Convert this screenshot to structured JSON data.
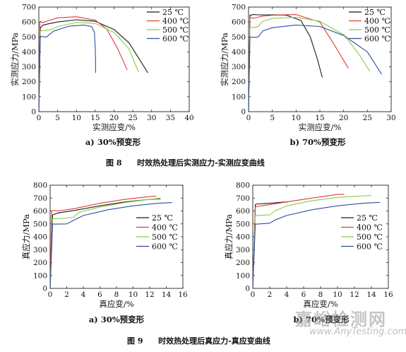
{
  "figures": [
    {
      "label": "图 8",
      "title": "时效热处理后实测应力-实测应变曲线"
    },
    {
      "label": "图 9",
      "title": "时效热处理后真应力-真应变曲线"
    }
  ],
  "watermark": {
    "cn": "嘉峪检测网",
    "en": "www.AnyTesting.com"
  },
  "colors": {
    "c25": "#1a1a1a",
    "c400": "#e03a3a",
    "c500": "#8acc48",
    "c600": "#2f4f9a"
  },
  "chart_data": [
    {
      "type": "line",
      "caption": "a) 30%预变形",
      "xlabel": "实测应变/%",
      "ylabel": "实测应力/MPa",
      "xlim": [
        0,
        40
      ],
      "ylim": [
        0,
        700
      ],
      "xticks": [
        0,
        5,
        10,
        15,
        20,
        25,
        30,
        35,
        40
      ],
      "yticks": [
        0,
        100,
        200,
        300,
        400,
        500,
        600,
        700
      ],
      "legend_position": "top-right",
      "series": [
        {
          "name": "25 ℃",
          "color_key": "c25",
          "x": [
            0,
            0.4,
            1,
            2,
            5,
            10,
            15,
            20,
            24,
            27,
            29
          ],
          "y": [
            0,
            560,
            578,
            585,
            600,
            615,
            605,
            550,
            460,
            340,
            260
          ]
        },
        {
          "name": "400 ℃",
          "color_key": "c400",
          "x": [
            0,
            0.3,
            0.5,
            1,
            2,
            5,
            10,
            15,
            18,
            21,
            23.5
          ],
          "y": [
            0,
            600,
            605,
            595,
            605,
            628,
            635,
            612,
            555,
            420,
            280
          ]
        },
        {
          "name": "500 ℃",
          "color_key": "c500",
          "x": [
            0,
            0.4,
            1,
            2,
            3,
            5,
            10,
            15,
            20,
            24,
            26.5
          ],
          "y": [
            0,
            540,
            542,
            545,
            548,
            570,
            598,
            590,
            530,
            420,
            265
          ]
        },
        {
          "name": "600 ℃",
          "color_key": "c600",
          "x": [
            0,
            0.4,
            1,
            2,
            4,
            8,
            12,
            14,
            14.8,
            15,
            15.1,
            15.1
          ],
          "y": [
            0,
            505,
            502,
            500,
            540,
            572,
            580,
            570,
            530,
            420,
            320,
            260
          ]
        }
      ]
    },
    {
      "type": "line",
      "caption": "b) 70%预变形",
      "xlabel": "实测应变/%",
      "ylabel": "实测应力/MPa",
      "xlim": [
        0,
        30
      ],
      "ylim": [
        0,
        700
      ],
      "xticks": [
        0,
        5,
        10,
        15,
        20,
        25,
        30
      ],
      "yticks": [
        0,
        100,
        200,
        300,
        400,
        500,
        600,
        700
      ],
      "legend_position": "top-right",
      "series": [
        {
          "name": "25 ℃",
          "color_key": "c25",
          "x": [
            0,
            0.3,
            1,
            2,
            5,
            8,
            11,
            13,
            14.5,
            15.5
          ],
          "y": [
            0,
            645,
            650,
            648,
            648,
            645,
            610,
            500,
            350,
            230
          ]
        },
        {
          "name": "400 ℃",
          "color_key": "c400",
          "x": [
            0,
            0.3,
            1,
            2,
            3,
            5,
            10,
            15,
            18,
            21
          ],
          "y": [
            0,
            630,
            625,
            632,
            640,
            645,
            650,
            600,
            450,
            290
          ]
        },
        {
          "name": "500 ℃",
          "color_key": "c500",
          "x": [
            0,
            0.3,
            1,
            2,
            3,
            5,
            10,
            15,
            20,
            23,
            25.5
          ],
          "y": [
            0,
            565,
            562,
            570,
            605,
            625,
            632,
            605,
            515,
            395,
            270
          ]
        },
        {
          "name": "600 ℃",
          "color_key": "c600",
          "x": [
            0,
            0.3,
            1,
            2,
            3,
            5,
            10,
            15,
            20,
            25,
            28
          ],
          "y": [
            0,
            500,
            497,
            500,
            540,
            562,
            580,
            570,
            510,
            400,
            250
          ]
        }
      ]
    },
    {
      "type": "line",
      "caption": "a) 30%预变形",
      "xlabel": "真应变/%",
      "ylabel": "真应力/MPa",
      "xlim": [
        0,
        16
      ],
      "ylim": [
        0,
        800
      ],
      "xticks": [
        0,
        2,
        4,
        6,
        8,
        10,
        12,
        14,
        16
      ],
      "yticks": [
        0,
        100,
        200,
        300,
        400,
        500,
        600,
        700,
        800
      ],
      "legend_position": "center-right",
      "series": [
        {
          "name": "25 ℃",
          "color_key": "c25",
          "x": [
            0,
            0.3,
            0.5,
            1,
            3,
            6,
            9,
            12,
            13.3
          ],
          "y": [
            0,
            570,
            575,
            585,
            605,
            640,
            670,
            690,
            695
          ]
        },
        {
          "name": "400 ℃",
          "color_key": "c400",
          "x": [
            0,
            0.2,
            0.4,
            1,
            3,
            6,
            9,
            12,
            12.8
          ],
          "y": [
            0,
            600,
            605,
            600,
            620,
            660,
            690,
            712,
            715
          ]
        },
        {
          "name": "500 ℃",
          "color_key": "c500",
          "x": [
            0,
            0.3,
            0.5,
            2,
            2.8,
            3.5,
            6,
            9,
            12,
            13.3
          ],
          "y": [
            0,
            540,
            540,
            545,
            550,
            590,
            630,
            665,
            690,
            700
          ]
        },
        {
          "name": "600 ℃",
          "color_key": "c600",
          "x": [
            0,
            0.3,
            0.5,
            2,
            2.6,
            4,
            7,
            10,
            13,
            14.7
          ],
          "y": [
            0,
            500,
            498,
            500,
            520,
            565,
            610,
            640,
            660,
            665
          ]
        }
      ]
    },
    {
      "type": "line",
      "caption": "b) 70%预变形",
      "xlabel": "真应变/%",
      "ylabel": "真应力/MPa",
      "xlim": [
        0,
        16
      ],
      "ylim": [
        0,
        800
      ],
      "xticks": [
        0,
        2,
        4,
        6,
        8,
        10,
        12,
        14,
        16
      ],
      "yticks": [
        0,
        100,
        200,
        300,
        400,
        500,
        600,
        700,
        800
      ],
      "legend_position": "center-right",
      "series": [
        {
          "name": "25 ℃",
          "color_key": "c25",
          "x": [
            0,
            0.3,
            0.5,
            2,
            3.5,
            4.2
          ],
          "y": [
            0,
            650,
            655,
            660,
            668,
            672
          ]
        },
        {
          "name": "400 ℃",
          "color_key": "c400",
          "x": [
            0,
            0.3,
            0.5,
            2,
            4,
            6,
            8,
            10,
            10.8
          ],
          "y": [
            0,
            630,
            635,
            650,
            670,
            690,
            710,
            728,
            730
          ]
        },
        {
          "name": "500 ℃",
          "color_key": "c500",
          "x": [
            0,
            0.3,
            0.5,
            2,
            2.6,
            4,
            7,
            10,
            13,
            14
          ],
          "y": [
            0,
            565,
            565,
            570,
            600,
            640,
            680,
            705,
            718,
            720
          ]
        },
        {
          "name": "600 ℃",
          "color_key": "c600",
          "x": [
            0,
            0.3,
            0.5,
            2,
            2.6,
            4,
            7,
            10,
            13,
            15
          ],
          "y": [
            0,
            500,
            498,
            505,
            530,
            565,
            610,
            640,
            660,
            667
          ]
        }
      ]
    }
  ]
}
